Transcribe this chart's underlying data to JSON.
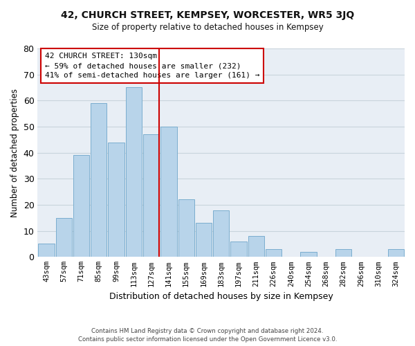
{
  "title1": "42, CHURCH STREET, KEMPSEY, WORCESTER, WR5 3JQ",
  "title2": "Size of property relative to detached houses in Kempsey",
  "xlabel": "Distribution of detached houses by size in Kempsey",
  "ylabel": "Number of detached properties",
  "bar_labels": [
    "43sqm",
    "57sqm",
    "71sqm",
    "85sqm",
    "99sqm",
    "113sqm",
    "127sqm",
    "141sqm",
    "155sqm",
    "169sqm",
    "183sqm",
    "197sqm",
    "211sqm",
    "226sqm",
    "240sqm",
    "254sqm",
    "268sqm",
    "282sqm",
    "296sqm",
    "310sqm",
    "324sqm"
  ],
  "bar_values": [
    5,
    15,
    39,
    59,
    44,
    65,
    47,
    50,
    22,
    13,
    18,
    6,
    8,
    3,
    0,
    2,
    0,
    3,
    0,
    0,
    3
  ],
  "bar_color": "#b8d4ea",
  "bar_edge_color": "#7aadce",
  "vline_x_index": 6,
  "vline_color": "#cc0000",
  "ylim": [
    0,
    80
  ],
  "yticks": [
    0,
    10,
    20,
    30,
    40,
    50,
    60,
    70,
    80
  ],
  "ann_line1": "42 CHURCH STREET: 130sqm",
  "ann_line2": "← 59% of detached houses are smaller (232)",
  "ann_line3": "41% of semi-detached houses are larger (161) →",
  "footer1": "Contains HM Land Registry data © Crown copyright and database right 2024.",
  "footer2": "Contains public sector information licensed under the Open Government Licence v3.0."
}
